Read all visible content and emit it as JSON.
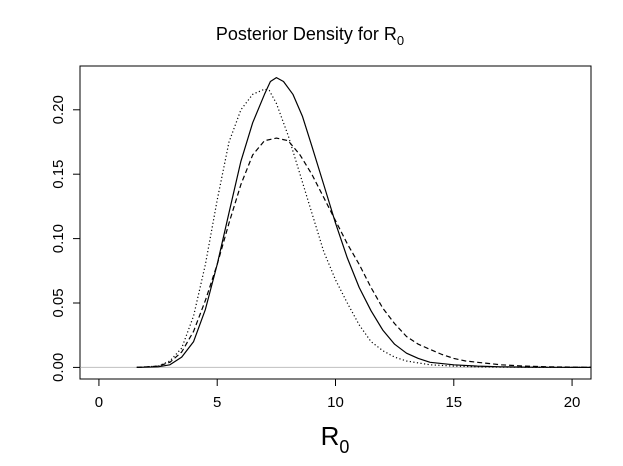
{
  "chart_data": {
    "type": "line",
    "title": "Posterior Density for R",
    "title_subscript": "0",
    "xlabel": "R",
    "xlabel_subscript": "0",
    "ylabel": "",
    "xlim": [
      -0.8,
      20.8
    ],
    "ylim": [
      -0.009,
      0.234
    ],
    "x_ticks": [
      "0",
      "5",
      "10",
      "15",
      "20"
    ],
    "y_ticks": [
      "0.00",
      "0.05",
      "0.10",
      "0.15",
      "0.20"
    ],
    "grid": false,
    "reference_line": {
      "y": 0,
      "color": "#bfbfbf"
    },
    "series": [
      {
        "style": "solid",
        "x": [
          1.6,
          2.5,
          3.0,
          3.5,
          4.0,
          4.5,
          5.0,
          5.5,
          6.0,
          6.5,
          7.0,
          7.25,
          7.5,
          7.8,
          8.2,
          8.6,
          9.0,
          9.5,
          10.0,
          10.5,
          11.0,
          11.5,
          12.0,
          12.5,
          13.0,
          13.5,
          14.0,
          15.0,
          16.0,
          17.0,
          18.0,
          19.0,
          20.8
        ],
        "y": [
          0.0,
          0.0005,
          0.002,
          0.008,
          0.02,
          0.045,
          0.08,
          0.12,
          0.16,
          0.19,
          0.212,
          0.222,
          0.225,
          0.222,
          0.212,
          0.195,
          0.172,
          0.142,
          0.112,
          0.085,
          0.062,
          0.044,
          0.029,
          0.018,
          0.011,
          0.007,
          0.004,
          0.002,
          0.001,
          0.0005,
          0.0002,
          0.0001,
          0.0
        ]
      },
      {
        "style": "dashed",
        "x": [
          1.6,
          2.5,
          3.0,
          3.5,
          4.0,
          4.5,
          5.0,
          5.5,
          6.0,
          6.5,
          7.0,
          7.5,
          8.0,
          8.5,
          9.0,
          9.5,
          10.0,
          10.5,
          11.0,
          11.5,
          12.0,
          12.5,
          13.0,
          13.5,
          14.0,
          14.5,
          15.0,
          15.5,
          16.0,
          17.0,
          18.0,
          19.0,
          20.8
        ],
        "y": [
          0.0,
          0.001,
          0.004,
          0.012,
          0.028,
          0.052,
          0.08,
          0.112,
          0.142,
          0.165,
          0.176,
          0.178,
          0.176,
          0.165,
          0.15,
          0.132,
          0.114,
          0.096,
          0.08,
          0.062,
          0.046,
          0.034,
          0.024,
          0.018,
          0.014,
          0.01,
          0.007,
          0.005,
          0.004,
          0.002,
          0.001,
          0.0005,
          0.0
        ]
      },
      {
        "style": "dotted",
        "x": [
          1.6,
          2.5,
          3.0,
          3.5,
          4.0,
          4.5,
          5.0,
          5.5,
          6.0,
          6.5,
          7.0,
          7.2,
          7.5,
          8.0,
          8.5,
          9.0,
          9.5,
          10.0,
          10.5,
          11.0,
          11.5,
          12.0,
          12.5,
          13.0,
          14.0,
          15.0,
          16.0,
          17.0,
          20.8
        ],
        "y": [
          0.0,
          0.001,
          0.005,
          0.015,
          0.04,
          0.08,
          0.13,
          0.175,
          0.2,
          0.212,
          0.216,
          0.215,
          0.205,
          0.18,
          0.15,
          0.12,
          0.09,
          0.068,
          0.05,
          0.033,
          0.02,
          0.013,
          0.008,
          0.005,
          0.002,
          0.001,
          0.0005,
          0.0002,
          0.0
        ]
      }
    ]
  }
}
